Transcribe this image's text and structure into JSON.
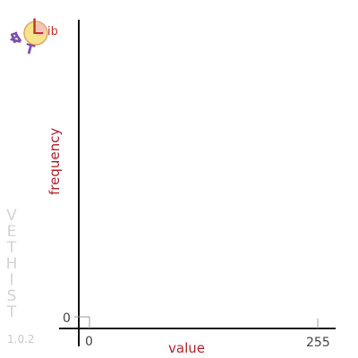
{
  "logo": {
    "letters": [
      "V",
      "E",
      "T"
    ],
    "big_letter": "L",
    "suffix": "ib"
  },
  "branding": {
    "vertical_name": "VETHIST",
    "version": "1.0.2"
  },
  "colors": {
    "axis": "#111111",
    "axis_title": "#b3242c",
    "logo_purple": "#7a4fb0",
    "logo_red": "#c0392b"
  },
  "chart_data": {
    "type": "bar",
    "title": "",
    "xlabel": "value",
    "ylabel": "frequency",
    "xlim": [
      0,
      255
    ],
    "ylim": [
      0,
      1
    ],
    "x_ticks": [
      {
        "value": 0,
        "label": "0"
      },
      {
        "value": 255,
        "label": "255"
      }
    ],
    "y_ticks": [
      {
        "value": 0,
        "label": "0"
      }
    ],
    "series": [],
    "grid": false
  }
}
